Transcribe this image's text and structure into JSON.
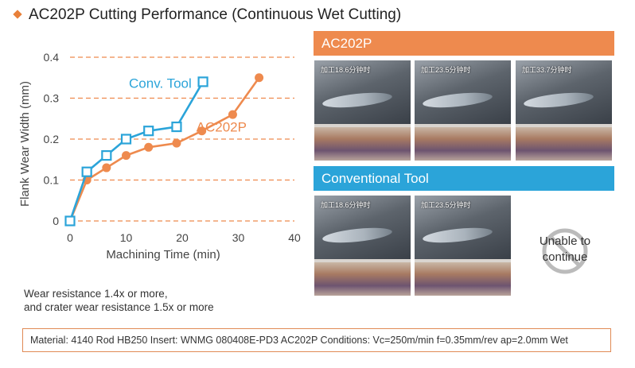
{
  "title": "AC202P Cutting Performance (Continuous Wet Cutting)",
  "chart_data": {
    "type": "line",
    "xlabel": "Machining Time (min)",
    "ylabel": "Flank Wear Width (mm)",
    "xlim": [
      0,
      40
    ],
    "ylim": [
      0,
      0.4
    ],
    "xticks": [
      "0",
      "10",
      "20",
      "30",
      "40"
    ],
    "yticks": [
      "0",
      "0.1",
      "0.2",
      "0.3",
      "0.4"
    ],
    "grid": "horizontal dashed",
    "series": [
      {
        "name": "Conv. Tool",
        "color": "#2ba4d9",
        "marker": "square",
        "x": [
          0,
          3,
          6.5,
          10,
          14,
          19,
          23.7
        ],
        "y": [
          0,
          0.12,
          0.16,
          0.2,
          0.22,
          0.23,
          0.34
        ]
      },
      {
        "name": "AC202P",
        "color": "#ee8a4e",
        "marker": "circle",
        "x": [
          0,
          3,
          6.5,
          10,
          14,
          19,
          23.5,
          29,
          33.7
        ],
        "y": [
          0,
          0.1,
          0.13,
          0.16,
          0.18,
          0.19,
          0.22,
          0.26,
          0.35
        ]
      }
    ]
  },
  "note": {
    "line1": "Wear resistance 1.4x or more,",
    "line2": "and crater wear resistance 1.5x or more"
  },
  "panels": {
    "ac202p_label": "AC202P",
    "conv_label": "Conventional Tool",
    "ac202p_captions": [
      "加工18.6分钟时",
      "加工23.5分钟时",
      "加工33.7分钟时"
    ],
    "conv_captions": [
      "加工18.6分钟时",
      "加工23.5分钟时"
    ],
    "unable_line1": "Unable to",
    "unable_line2": "continue"
  },
  "footer": "Material: 4140 Rod HB250  Insert: WNMG 080408E-PD3 AC202P     Conditions: Vc=250m/min f=0.35mm/rev ap=2.0mm Wet"
}
